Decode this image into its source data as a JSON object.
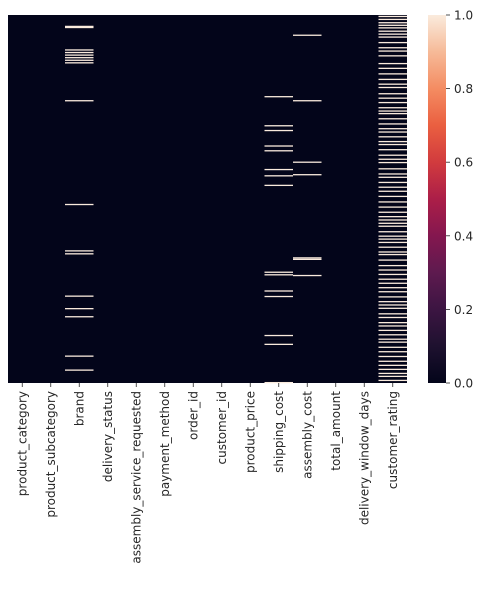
{
  "chart_data": {
    "type": "heatmap",
    "title": "",
    "xlabel": "",
    "ylabel": "",
    "columns": [
      "product_category",
      "product_subcategory",
      "brand",
      "delivery_status",
      "assembly_service_requested",
      "payment_method",
      "order_id",
      "customer_id",
      "product_price",
      "shipping_cost",
      "assembly_cost",
      "total_amount",
      "delivery_window_days",
      "customer_rating"
    ],
    "value_range": [
      0,
      1
    ],
    "colorbar": {
      "ticks": [
        "0.0",
        "0.2",
        "0.4",
        "0.6",
        "0.8",
        "1.0"
      ],
      "tick_values": [
        0.0,
        0.2,
        0.4,
        0.6,
        0.8,
        1.0
      ],
      "colormap": "rocket",
      "low_color": "#03051a",
      "high_color": "#faebdd"
    },
    "missing_value_rows_fraction": {
      "product_category": [],
      "product_subcategory": [],
      "brand": [
        0.031,
        0.034,
        0.095,
        0.102,
        0.109,
        0.116,
        0.123,
        0.13,
        0.233,
        0.515,
        0.641,
        0.649,
        0.764,
        0.798,
        0.82,
        0.927,
        0.965
      ],
      "delivery_status": [],
      "assembly_service_requested": [],
      "payment_method": [],
      "order_id": [],
      "customer_id": [],
      "product_price": [],
      "shipping_cost": [
        0.222,
        0.301,
        0.314,
        0.356,
        0.369,
        0.42,
        0.437,
        0.463,
        0.699,
        0.706,
        0.75,
        0.765,
        0.871,
        0.895,
        0.999
      ],
      "assembly_cost": [
        0.055,
        0.233,
        0.4,
        0.434,
        0.66,
        0.664,
        0.708
      ],
      "total_amount": [],
      "delivery_window_days": [],
      "customer_rating": [
        0.004,
        0.012,
        0.021,
        0.028,
        0.035,
        0.044,
        0.052,
        0.06,
        0.075,
        0.089,
        0.098,
        0.111,
        0.132,
        0.145,
        0.16,
        0.175,
        0.188,
        0.197,
        0.214,
        0.226,
        0.238,
        0.252,
        0.261,
        0.268,
        0.282,
        0.296,
        0.309,
        0.318,
        0.331,
        0.344,
        0.352,
        0.366,
        0.381,
        0.392,
        0.401,
        0.418,
        0.432,
        0.441,
        0.455,
        0.468,
        0.479,
        0.493,
        0.508,
        0.522,
        0.536,
        0.548,
        0.557,
        0.566,
        0.574,
        0.589,
        0.601,
        0.609,
        0.618,
        0.631,
        0.644,
        0.651,
        0.666,
        0.681,
        0.693,
        0.705,
        0.718,
        0.729,
        0.741,
        0.752,
        0.766,
        0.779,
        0.788,
        0.797,
        0.812,
        0.822,
        0.836,
        0.845,
        0.857,
        0.869,
        0.881,
        0.889,
        0.903,
        0.915,
        0.928,
        0.941,
        0.952,
        0.963,
        0.974,
        0.982,
        0.993
      ]
    },
    "grid": false,
    "legend": "colorbar-right"
  }
}
